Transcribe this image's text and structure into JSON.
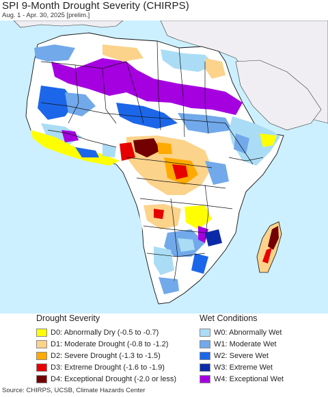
{
  "header": {
    "title": "SPI 9-Month Drought Severity (CHIRPS)",
    "subtitle": "Aug. 1 - Apr. 30, 2025 [prelim.]"
  },
  "colors": {
    "ocean": "#ccf0ff",
    "land_outside": "#f0eef2",
    "land_base": "#ffffff",
    "border": "#111111"
  },
  "legend": {
    "drought": {
      "heading": "Drought Severity",
      "items": [
        {
          "label": "D0: Abnormally Dry (-0.5 to -0.7)",
          "color": "#ffff00"
        },
        {
          "label": "D1: Moderate Drought (-0.8 to -1.2)",
          "color": "#fcd38a"
        },
        {
          "label": "D2: Severe Drought (-1.3 to -1.5)",
          "color": "#ffaa00"
        },
        {
          "label": "D3: Extreme Drought (-1.6 to -1.9)",
          "color": "#e60000"
        },
        {
          "label": "D4: Exceptional Drought (-2.0 or less)",
          "color": "#730000"
        }
      ]
    },
    "wet": {
      "heading": "Wet Conditions",
      "items": [
        {
          "label": "W0: Abnormally Wet",
          "color": "#aaddf5"
        },
        {
          "label": "W1: Moderate Wet",
          "color": "#71a9ea"
        },
        {
          "label": "W2: Severe Wet",
          "color": "#1c67e9"
        },
        {
          "label": "W3: Extreme Wet",
          "color": "#0a2aa8"
        },
        {
          "label": "W4: Exceptional Wet",
          "color": "#a500e0"
        }
      ]
    }
  },
  "footer": {
    "source": "Source: CHIRPS, UCSB, Climate Hazards Center"
  }
}
